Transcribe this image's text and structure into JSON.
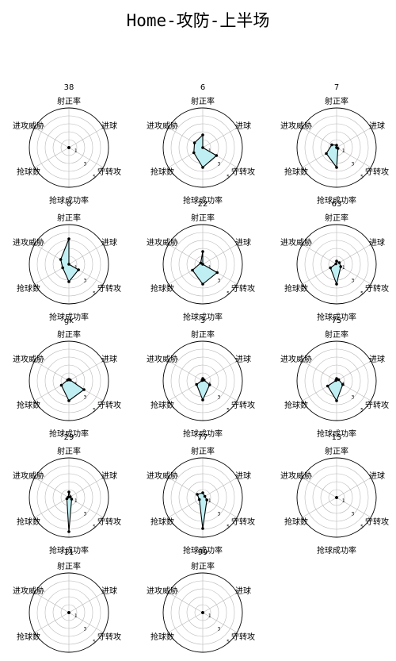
{
  "title": "Home-攻防-上半场",
  "colors": {
    "fill": "#bfeff2",
    "line": "#000000",
    "grid": "#b8b8b8",
    "frame": "#000000"
  },
  "chart_data": {
    "type": "radar",
    "axes": [
      "射正率",
      "进球",
      "守转攻",
      "抢球成功率",
      "抢球数",
      "进攻威胁"
    ],
    "rlim": [
      0,
      5
    ],
    "rticks": [
      "1",
      "3",
      "5"
    ],
    "grid": true,
    "players": [
      {
        "label": "38",
        "values": [
          0,
          0,
          0,
          0,
          0,
          0
        ]
      },
      {
        "label": "6",
        "values": [
          1.6,
          0,
          2.0,
          2.5,
          1.3,
          1.2
        ]
      },
      {
        "label": "7",
        "values": [
          0.3,
          0,
          0.2,
          2.5,
          1.5,
          0.7
        ]
      },
      {
        "label": "0",
        "values": [
          3.2,
          0,
          1.4,
          2.2,
          0.9,
          1.2
        ]
      },
      {
        "label": "22",
        "values": [
          1.6,
          0,
          2.1,
          2.5,
          1.5,
          0.3
        ]
      },
      {
        "label": "63",
        "values": [
          0.4,
          0.4,
          0.6,
          2.5,
          0.9,
          0.1
        ]
      },
      {
        "label": "gk",
        "values": [
          0.2,
          0.2,
          2.2,
          2.5,
          1.1,
          0.2
        ]
      },
      {
        "label": "3",
        "values": [
          0.3,
          0.2,
          1.0,
          2.4,
          0.9,
          0.1
        ]
      },
      {
        "label": "75",
        "values": [
          0.3,
          0.3,
          0.9,
          2.5,
          1.3,
          0.1
        ]
      },
      {
        "label": "29",
        "values": [
          0.7,
          0.2,
          0.4,
          4.3,
          0.3,
          0.1
        ]
      },
      {
        "label": "77",
        "values": [
          0.6,
          0.3,
          0.6,
          3.9,
          0.5,
          0.8
        ]
      },
      {
        "label": "15",
        "values": [
          0,
          0,
          0,
          0,
          0,
          0
        ]
      },
      {
        "label": "11",
        "values": [
          0,
          0,
          0,
          0,
          0,
          0
        ]
      },
      {
        "label": "99",
        "values": [
          0,
          0,
          0,
          0,
          0,
          0
        ]
      }
    ]
  }
}
